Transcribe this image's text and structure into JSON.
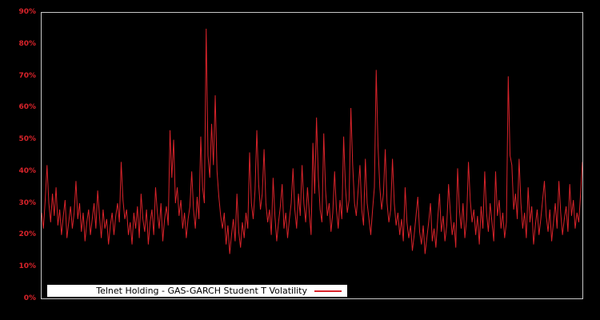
{
  "chart_data": {
    "type": "line",
    "title": "",
    "xlabel": "",
    "ylabel": "",
    "legend_label": "Telnet Holding - GAS-GARCH Student T Volatility",
    "legend_position": "bottom-left-inside",
    "grid": false,
    "unit": "%",
    "ylim": [
      0,
      90
    ],
    "yticks": [
      "0%",
      "10%",
      "20%",
      "30%",
      "40%",
      "50%",
      "60%",
      "70%",
      "80%",
      "90%"
    ],
    "ytick_values": [
      0,
      10,
      20,
      30,
      40,
      50,
      60,
      70,
      80,
      90
    ],
    "xticks": [],
    "line_color": "#d8232a",
    "tick_label_color": "#d8232a",
    "axis_border_color": "#c8c8c8",
    "background_color": "#000000",
    "legend_background": "#ffffff",
    "legend_text_color": "#000000",
    "series": [
      {
        "name": "Telnet Holding - GAS-GARCH Student T Volatility",
        "values": [
          27,
          22,
          31,
          42,
          30,
          24,
          33,
          26,
          35,
          23,
          28,
          20,
          26,
          31,
          19,
          24,
          29,
          22,
          27,
          37,
          25,
          30,
          21,
          27,
          18,
          24,
          28,
          20,
          25,
          30,
          22,
          34,
          26,
          19,
          28,
          22,
          25,
          17,
          23,
          27,
          20,
          26,
          30,
          24,
          43,
          31,
          25,
          28,
          20,
          24,
          17,
          27,
          22,
          29,
          19,
          33,
          25,
          21,
          28,
          17,
          24,
          28,
          20,
          35,
          27,
          22,
          30,
          18,
          25,
          29,
          23,
          53,
          38,
          50,
          30,
          35,
          26,
          31,
          22,
          27,
          19,
          25,
          29,
          40,
          28,
          22,
          32,
          25,
          51,
          35,
          30,
          85,
          45,
          38,
          55,
          42,
          64,
          40,
          32,
          26,
          22,
          27,
          17,
          23,
          14,
          20,
          25,
          18,
          33,
          21,
          16,
          24,
          19,
          27,
          22,
          46,
          30,
          25,
          34,
          53,
          36,
          28,
          33,
          47,
          30,
          24,
          28,
          20,
          38,
          26,
          18,
          24,
          29,
          36,
          22,
          27,
          19,
          25,
          30,
          41,
          28,
          22,
          33,
          26,
          42,
          30,
          24,
          35,
          27,
          20,
          49,
          33,
          57,
          38,
          28,
          24,
          52,
          34,
          26,
          30,
          21,
          27,
          40,
          28,
          22,
          31,
          25,
          51,
          35,
          27,
          31,
          60,
          42,
          30,
          26,
          34,
          42,
          28,
          23,
          44,
          30,
          25,
          20,
          28,
          35,
          72,
          48,
          35,
          28,
          33,
          47,
          30,
          24,
          28,
          44,
          30,
          23,
          27,
          20,
          25,
          18,
          35,
          24,
          19,
          23,
          15,
          20,
          26,
          32,
          21,
          17,
          23,
          14,
          19,
          24,
          30,
          18,
          22,
          16,
          25,
          33,
          21,
          26,
          18,
          23,
          36,
          27,
          20,
          24,
          16,
          41,
          28,
          22,
          30,
          19,
          25,
          43,
          31,
          24,
          28,
          20,
          26,
          17,
          29,
          22,
          40,
          27,
          21,
          30,
          24,
          18,
          40,
          26,
          31,
          22,
          27,
          19,
          24,
          70,
          45,
          42,
          28,
          33,
          25,
          44,
          30,
          22,
          27,
          19,
          35,
          24,
          29,
          17,
          23,
          28,
          20,
          25,
          31,
          37,
          26,
          21,
          28,
          18,
          24,
          30,
          22,
          37,
          27,
          20,
          25,
          29,
          21,
          36,
          26,
          31,
          22,
          27,
          24,
          33,
          43
        ]
      }
    ]
  }
}
